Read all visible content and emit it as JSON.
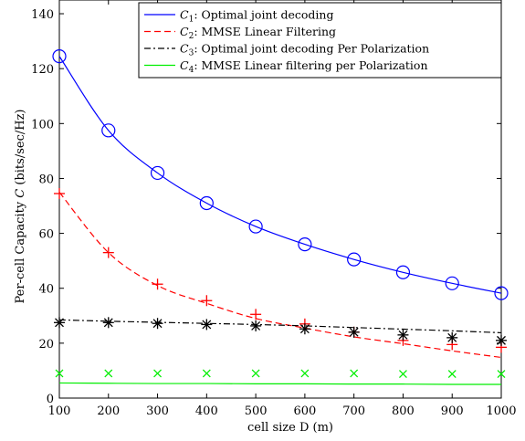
{
  "chart_data": {
    "type": "line",
    "xlabel": "cell size D  (m)",
    "ylabel": "Per-cell Capacity C (bits/sec/Hz)",
    "xlim": [
      100,
      1000
    ],
    "ylim": [
      0,
      145
    ],
    "xticks": [
      100,
      200,
      300,
      400,
      500,
      600,
      700,
      800,
      900,
      1000
    ],
    "yticks": [
      0,
      20,
      40,
      60,
      80,
      100,
      120,
      140
    ],
    "legend_position": "top-right",
    "grid": false,
    "series": [
      {
        "name": "C1: Optimal joint decoding",
        "legend_sub": "1",
        "legend_rest": ": Optimal joint decoding",
        "color": "#0000ff",
        "line_style": "solid",
        "marker": "circle",
        "x": [
          100,
          200,
          300,
          400,
          500,
          600,
          700,
          800,
          900,
          1000
        ],
        "y": [
          124.5,
          97.5,
          82,
          71,
          62.5,
          56,
          50.5,
          45.8,
          41.8,
          38.2
        ]
      },
      {
        "name": "C2: MMSE Linear Filtering",
        "legend_sub": "2",
        "legend_rest": ": MMSE Linear Filtering",
        "color": "#ff0000",
        "line_style": "dashed",
        "marker": "plus",
        "x": [
          100,
          200,
          300,
          400,
          500,
          600,
          700,
          800,
          900,
          1000
        ],
        "y": [
          74.5,
          53,
          41.5,
          35.5,
          30.5,
          27,
          24,
          21,
          19.5,
          18.5
        ],
        "line_y": [
          75,
          53,
          41,
          34.5,
          29,
          25.5,
          22.3,
          19.8,
          17.2,
          14.8
        ]
      },
      {
        "name": "C3: Optimal joint decoding Per Polarization",
        "legend_sub": "3",
        "legend_rest": ": Optimal joint decoding Per Polarization",
        "color": "#000000",
        "line_style": "dashdot",
        "marker": "asterisk",
        "x": [
          100,
          200,
          300,
          400,
          500,
          600,
          700,
          800,
          900,
          1000
        ],
        "y": [
          27.5,
          27.5,
          27.2,
          26.8,
          26.3,
          25.2,
          24,
          23,
          22,
          21
        ],
        "line_y": [
          28.5,
          28,
          27.6,
          27.2,
          26.8,
          26.3,
          25.7,
          25.1,
          24.5,
          23.8
        ]
      },
      {
        "name": "C4: MMSE Linear filtering per Polarization",
        "legend_sub": "4",
        "legend_rest": ": MMSE Linear filtering per Polarization",
        "color": "#00ee00",
        "line_style": "solid",
        "marker": "x",
        "x": [
          100,
          200,
          300,
          400,
          500,
          600,
          700,
          800,
          900,
          1000
        ],
        "y": [
          9,
          9,
          9,
          9,
          9,
          9,
          9,
          8.8,
          8.8,
          8.8
        ],
        "line_y": [
          5.5,
          5.4,
          5.3,
          5.3,
          5.2,
          5.2,
          5.1,
          5.1,
          5.0,
          5.0
        ]
      }
    ]
  }
}
